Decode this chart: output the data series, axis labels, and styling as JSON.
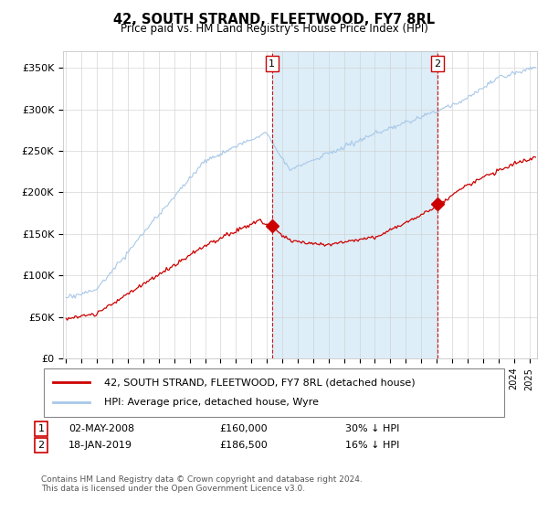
{
  "title": "42, SOUTH STRAND, FLEETWOOD, FY7 8RL",
  "subtitle": "Price paid vs. HM Land Registry's House Price Index (HPI)",
  "ylabel_ticks": [
    "£0",
    "£50K",
    "£100K",
    "£150K",
    "£200K",
    "£250K",
    "£300K",
    "£350K"
  ],
  "ylim": [
    0,
    370000
  ],
  "xlim_start": 1994.8,
  "xlim_end": 2025.5,
  "hpi_color": "#a8c8e8",
  "hpi_fill_color": "#ddeef8",
  "price_color": "#cc0000",
  "vline_color": "#cc0000",
  "marker1_year": 2008.33,
  "marker1_price": 160000,
  "marker2_year": 2019.05,
  "marker2_price": 186500,
  "legend_label1": "42, SOUTH STRAND, FLEETWOOD, FY7 8RL (detached house)",
  "legend_label2": "HPI: Average price, detached house, Wyre",
  "annotation1_label": "1",
  "annotation1_date": "02-MAY-2008",
  "annotation1_price": "£160,000",
  "annotation1_hpi": "30% ↓ HPI",
  "annotation2_label": "2",
  "annotation2_date": "18-JAN-2019",
  "annotation2_price": "£186,500",
  "annotation2_hpi": "16% ↓ HPI",
  "footer": "Contains HM Land Registry data © Crown copyright and database right 2024.\nThis data is licensed under the Open Government Licence v3.0.",
  "background_color": "#ffffff",
  "grid_color": "#cccccc"
}
